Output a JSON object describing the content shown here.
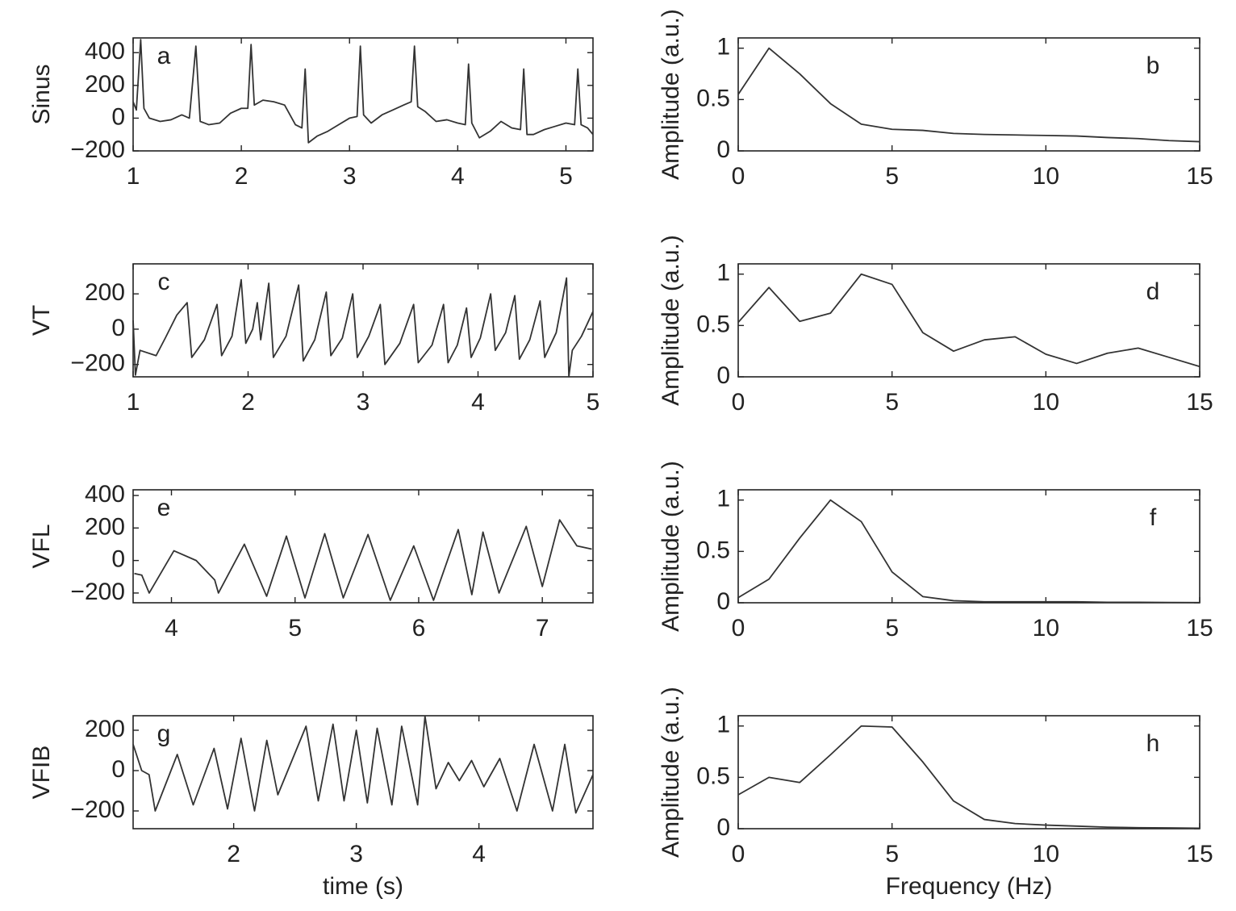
{
  "chart_data": [
    {
      "type": "line",
      "ylabel": "Sinus",
      "annotation": "a",
      "color": "#333333",
      "x": [
        1.0,
        1.03,
        1.07,
        1.1,
        1.15,
        1.25,
        1.35,
        1.45,
        1.52,
        1.58,
        1.62,
        1.7,
        1.8,
        1.9,
        2.0,
        2.06,
        2.09,
        2.12,
        2.2,
        2.3,
        2.4,
        2.5,
        2.56,
        2.59,
        2.62,
        2.7,
        2.8,
        2.9,
        3.0,
        3.07,
        3.1,
        3.13,
        3.2,
        3.3,
        3.4,
        3.5,
        3.57,
        3.6,
        3.63,
        3.7,
        3.8,
        3.9,
        4.0,
        4.07,
        4.1,
        4.13,
        4.2,
        4.3,
        4.4,
        4.5,
        4.58,
        4.61,
        4.64,
        4.7,
        4.8,
        4.9,
        5.0,
        5.08,
        5.11,
        5.14,
        5.2,
        5.25
      ],
      "values": [
        100,
        50,
        480,
        60,
        0,
        -20,
        -10,
        20,
        0,
        440,
        -20,
        -40,
        -30,
        30,
        60,
        60,
        450,
        80,
        110,
        100,
        80,
        -40,
        -60,
        300,
        -150,
        -110,
        -80,
        -40,
        0,
        10,
        440,
        20,
        -30,
        20,
        50,
        80,
        100,
        440,
        70,
        40,
        -20,
        -10,
        -30,
        -40,
        330,
        -30,
        -120,
        -80,
        -20,
        -60,
        -70,
        300,
        -100,
        -100,
        -70,
        -50,
        -30,
        -40,
        300,
        -40,
        -60,
        -100
      ],
      "xlim": [
        1,
        5.25
      ],
      "xticks": [
        1,
        2,
        3,
        4,
        5
      ],
      "ylim": [
        -200,
        490
      ],
      "yticks": [
        {
          "value": -200,
          "label": "−200"
        },
        0,
        200,
        400
      ]
    },
    {
      "type": "line",
      "ylabel": "Amplitude (a.u.)",
      "annotation": "b",
      "color": "#333333",
      "x": [
        0,
        1,
        2,
        3,
        4,
        5,
        6,
        7,
        8,
        9,
        10,
        11,
        12,
        13,
        14,
        15
      ],
      "values": [
        0.55,
        1.0,
        0.75,
        0.46,
        0.26,
        0.21,
        0.2,
        0.17,
        0.16,
        0.155,
        0.15,
        0.145,
        0.13,
        0.12,
        0.1,
        0.09
      ],
      "xlim": [
        0,
        15
      ],
      "xticks": [
        0,
        5,
        10,
        15
      ],
      "ylim": [
        0,
        1.1
      ],
      "yticks": [
        0,
        0.5,
        1
      ]
    },
    {
      "type": "line",
      "ylabel": "VT",
      "annotation": "c",
      "color": "#333333",
      "x": [
        1.0,
        1.02,
        1.06,
        1.2,
        1.28,
        1.38,
        1.47,
        1.51,
        1.62,
        1.73,
        1.77,
        1.86,
        1.94,
        1.98,
        2.04,
        2.08,
        2.11,
        2.18,
        2.22,
        2.33,
        2.44,
        2.48,
        2.58,
        2.68,
        2.72,
        2.82,
        2.91,
        2.95,
        3.05,
        3.15,
        3.19,
        3.32,
        3.44,
        3.48,
        3.6,
        3.7,
        3.74,
        3.82,
        3.9,
        3.94,
        4.02,
        4.11,
        4.15,
        4.24,
        4.32,
        4.36,
        4.45,
        4.54,
        4.58,
        4.68,
        4.77,
        4.79,
        4.82,
        4.9,
        5.0
      ],
      "values": [
        50,
        -260,
        -120,
        -150,
        -50,
        80,
        150,
        -160,
        -60,
        140,
        -150,
        -40,
        280,
        -80,
        0,
        150,
        -60,
        260,
        -160,
        -40,
        250,
        -180,
        -60,
        210,
        -150,
        -50,
        200,
        -160,
        -40,
        140,
        -200,
        -80,
        140,
        -190,
        -90,
        140,
        -190,
        -90,
        120,
        -160,
        -50,
        200,
        -120,
        -20,
        190,
        -170,
        -60,
        160,
        -160,
        -20,
        290,
        -270,
        -120,
        -40,
        100
      ],
      "xlim": [
        1,
        5
      ],
      "xticks": [
        1,
        2,
        3,
        4,
        5
      ],
      "ylim": [
        -270,
        370
      ],
      "yticks": [
        {
          "value": -200,
          "label": "−200"
        },
        0,
        200
      ]
    },
    {
      "type": "line",
      "ylabel": "Amplitude (a.u.)",
      "annotation": "d",
      "color": "#333333",
      "x": [
        0,
        1,
        2,
        3,
        4,
        5,
        6,
        7,
        8,
        9,
        10,
        11,
        12,
        13,
        14,
        15
      ],
      "values": [
        0.53,
        0.87,
        0.54,
        0.62,
        1.0,
        0.9,
        0.43,
        0.25,
        0.36,
        0.39,
        0.22,
        0.13,
        0.23,
        0.28,
        0.19,
        0.1
      ],
      "xlim": [
        0,
        15
      ],
      "xticks": [
        0,
        5,
        10,
        15
      ],
      "ylim": [
        0,
        1.1
      ],
      "yticks": [
        0,
        0.5,
        1
      ]
    },
    {
      "type": "line",
      "ylabel": "VFL",
      "annotation": "e",
      "color": "#333333",
      "x": [
        3.7,
        3.76,
        3.82,
        4.02,
        4.2,
        4.35,
        4.38,
        4.59,
        4.77,
        4.93,
        5.08,
        5.24,
        5.39,
        5.59,
        5.77,
        5.96,
        6.12,
        6.32,
        6.43,
        6.52,
        6.65,
        6.87,
        7.0,
        7.14,
        7.28,
        7.4
      ],
      "values": [
        -80,
        -90,
        -200,
        60,
        0,
        -120,
        -200,
        100,
        -220,
        150,
        -230,
        165,
        -230,
        160,
        -245,
        90,
        -245,
        190,
        -210,
        175,
        -200,
        210,
        -160,
        250,
        90,
        70
      ],
      "xlim": [
        3.69,
        7.41
      ],
      "xticks": [
        4,
        5,
        6,
        7
      ],
      "ylim": [
        -260,
        435
      ],
      "yticks": [
        {
          "value": -200,
          "label": "−200"
        },
        0,
        200,
        400
      ]
    },
    {
      "type": "line",
      "ylabel": "Amplitude (a.u.)",
      "annotation": "f",
      "color": "#333333",
      "x": [
        0,
        1,
        2,
        3,
        4,
        5,
        6,
        7,
        8,
        9,
        10,
        11,
        12,
        13,
        14,
        15
      ],
      "values": [
        0.05,
        0.23,
        0.63,
        1.0,
        0.79,
        0.3,
        0.06,
        0.02,
        0.01,
        0.01,
        0.01,
        0.01,
        0.005,
        0.005,
        0.003,
        0.002
      ],
      "xlim": [
        0,
        15
      ],
      "xticks": [
        0,
        5,
        10,
        15
      ],
      "ylim": [
        0,
        1.1
      ],
      "yticks": [
        0,
        0.5,
        1
      ]
    },
    {
      "type": "line",
      "ylabel": "VFIB",
      "annotation": "g",
      "xlabel": "time (s)",
      "color": "#333333",
      "x": [
        1.18,
        1.25,
        1.31,
        1.36,
        1.54,
        1.67,
        1.84,
        1.95,
        2.06,
        2.17,
        2.27,
        2.36,
        2.59,
        2.69,
        2.81,
        2.9,
        3.0,
        3.09,
        3.17,
        3.29,
        3.37,
        3.5,
        3.56,
        3.65,
        3.75,
        3.84,
        3.94,
        4.04,
        4.17,
        4.31,
        4.45,
        4.6,
        4.7,
        4.79,
        4.93
      ],
      "values": [
        130,
        0,
        -20,
        -200,
        80,
        -170,
        110,
        -190,
        160,
        -200,
        150,
        -120,
        220,
        -150,
        230,
        -150,
        200,
        -160,
        210,
        -170,
        220,
        -170,
        270,
        -90,
        40,
        -50,
        50,
        -80,
        60,
        -200,
        130,
        -200,
        130,
        -210,
        -20
      ],
      "xlim": [
        1.18,
        4.93
      ],
      "xticks": [
        2,
        3,
        4
      ],
      "ylim": [
        -288,
        272
      ],
      "yticks": [
        {
          "value": -200,
          "label": "−200"
        },
        0,
        200
      ]
    },
    {
      "type": "line",
      "ylabel": "Amplitude (a.u.)",
      "annotation": "h",
      "xlabel": "Frequency (Hz)",
      "color": "#333333",
      "x": [
        0,
        1,
        2,
        3,
        4,
        5,
        6,
        7,
        8,
        9,
        10,
        11,
        12,
        13,
        14,
        15
      ],
      "values": [
        0.33,
        0.5,
        0.45,
        0.72,
        1.0,
        0.99,
        0.65,
        0.27,
        0.09,
        0.05,
        0.035,
        0.025,
        0.015,
        0.01,
        0.008,
        0.005
      ],
      "xlim": [
        0,
        15
      ],
      "xticks": [
        0,
        5,
        10,
        15
      ],
      "ylim": [
        0,
        1.1
      ],
      "yticks": [
        0,
        0.5,
        1
      ]
    }
  ]
}
